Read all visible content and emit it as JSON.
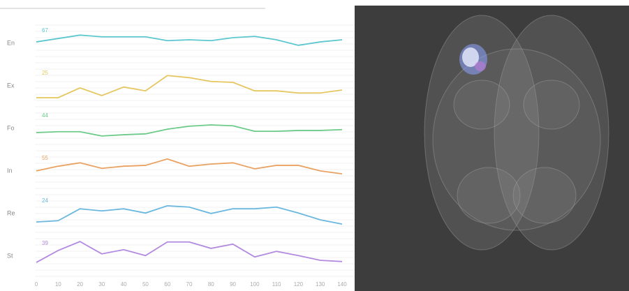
{
  "chart_data": [
    {
      "type": "line",
      "label": "En",
      "badge": "67",
      "color": "#5cc7cf",
      "x": [
        0,
        10,
        20,
        30,
        40,
        50,
        60,
        70,
        80,
        90,
        100,
        110,
        120,
        130,
        140
      ],
      "values": [
        54,
        62,
        70,
        66,
        66,
        66,
        57,
        59,
        57,
        64,
        67,
        59,
        46,
        54,
        59
      ],
      "xlim": [
        0,
        140
      ],
      "ylim": [
        0,
        100
      ]
    },
    {
      "type": "line",
      "label": "Ex",
      "badge": "25",
      "color": "#e6c65e",
      "x": [
        0,
        10,
        20,
        30,
        40,
        50,
        60,
        70,
        80,
        90,
        100,
        110,
        120,
        130,
        140
      ],
      "values": [
        23,
        23,
        46,
        28,
        48,
        39,
        75,
        70,
        61,
        59,
        39,
        39,
        34,
        34,
        41
      ],
      "xlim": [
        0,
        140
      ],
      "ylim": [
        0,
        100
      ]
    },
    {
      "type": "line",
      "label": "Fo",
      "badge": "44",
      "color": "#6ccb89",
      "x": [
        0,
        10,
        20,
        30,
        40,
        50,
        60,
        70,
        80,
        90,
        100,
        110,
        120,
        130,
        140
      ],
      "values": [
        41,
        43,
        43,
        33,
        36,
        38,
        49,
        56,
        59,
        57,
        44,
        44,
        46,
        46,
        48
      ],
      "xlim": [
        0,
        140
      ],
      "ylim": [
        0,
        100
      ]
    },
    {
      "type": "line",
      "label": "In",
      "badge": "55",
      "color": "#e9a262",
      "x": [
        0,
        10,
        20,
        30,
        40,
        50,
        60,
        70,
        80,
        90,
        100,
        110,
        120,
        130,
        140
      ],
      "values": [
        51,
        62,
        70,
        57,
        62,
        64,
        79,
        62,
        67,
        70,
        56,
        64,
        64,
        51,
        44
      ],
      "xlim": [
        0,
        140
      ],
      "ylim": [
        0,
        100
      ]
    },
    {
      "type": "line",
      "label": "Re",
      "badge": "24",
      "color": "#6ab7df",
      "x": [
        0,
        10,
        20,
        30,
        40,
        50,
        60,
        70,
        80,
        90,
        100,
        110,
        120,
        130,
        140
      ],
      "values": [
        31,
        34,
        62,
        57,
        62,
        52,
        69,
        66,
        51,
        62,
        62,
        66,
        52,
        36,
        26
      ],
      "xlim": [
        0,
        140
      ],
      "ylim": [
        0,
        100
      ]
    },
    {
      "type": "line",
      "label": "St",
      "badge": "39",
      "color": "#b28ae0",
      "x": [
        0,
        10,
        20,
        30,
        40,
        50,
        60,
        70,
        80,
        90,
        100,
        110,
        120,
        130,
        140
      ],
      "values": [
        36,
        64,
        85,
        56,
        66,
        52,
        84,
        84,
        69,
        79,
        49,
        62,
        52,
        41,
        38
      ],
      "xlim": [
        0,
        140
      ],
      "ylim": [
        0,
        100
      ],
      "xticks": [
        0,
        10,
        20,
        30,
        40,
        50,
        60,
        70,
        80,
        90,
        100,
        110,
        120,
        130,
        140
      ]
    }
  ]
}
